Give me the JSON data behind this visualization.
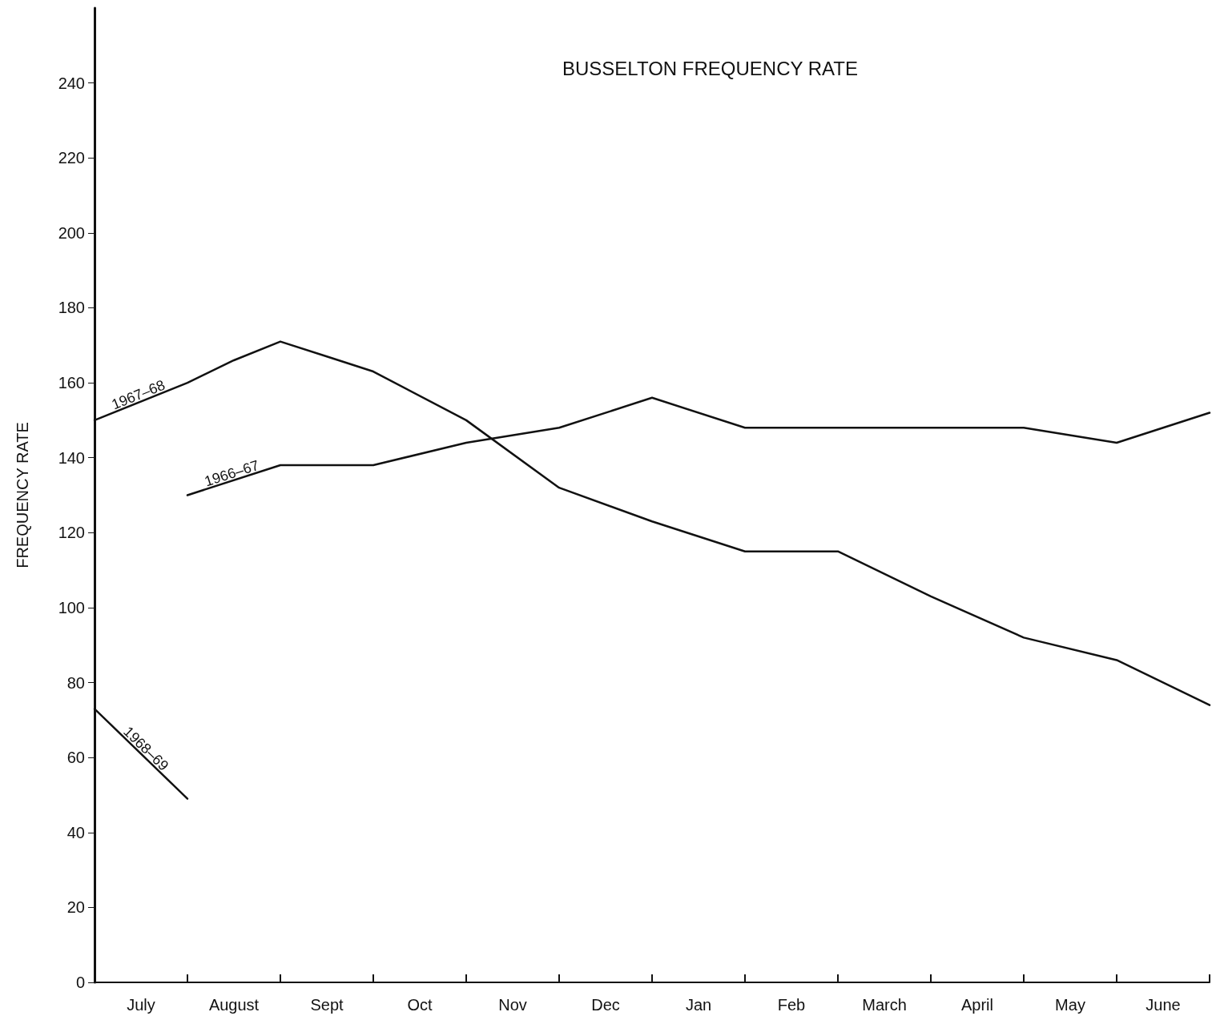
{
  "chart_data": {
    "type": "line",
    "title": "BUSSELTON FREQUENCY RATE",
    "ylabel": "FREQUENCY RATE",
    "categories": [
      null,
      "July",
      null,
      "August",
      null,
      "Sept",
      null,
      "Oct",
      null,
      "Nov",
      null,
      "Dec",
      null,
      "Jan",
      null,
      "Feb",
      null,
      "March",
      null,
      "April",
      null,
      "May",
      null,
      "June",
      null
    ],
    "ylim": [
      0,
      260
    ],
    "yticks": [
      0,
      20,
      40,
      60,
      80,
      100,
      120,
      140,
      160,
      180,
      200,
      220,
      240
    ],
    "grid": false,
    "legend": false,
    "marker": "none",
    "line_style": "solid",
    "series": [
      {
        "name": "1967–68",
        "color": "#111111",
        "values": [
          150,
          null,
          160,
          166,
          171,
          167,
          163,
          null,
          150,
          null,
          132,
          null,
          123,
          null,
          115,
          null,
          115,
          null,
          103,
          null,
          92,
          null,
          86,
          null,
          74
        ]
      },
      {
        "name": "1966–67",
        "color": "#111111",
        "values": [
          null,
          null,
          130,
          null,
          138,
          null,
          138,
          null,
          144,
          null,
          148,
          null,
          156,
          null,
          148,
          null,
          148,
          null,
          null,
          null,
          148,
          null,
          144,
          null,
          152
        ]
      },
      {
        "name": "1968–69",
        "color": "#111111",
        "values": [
          73,
          null,
          49,
          null,
          null,
          null,
          null,
          null,
          null,
          null,
          null,
          null,
          null,
          null,
          null,
          null,
          null,
          null,
          null,
          null,
          null,
          null,
          null,
          null,
          null
        ]
      }
    ]
  }
}
